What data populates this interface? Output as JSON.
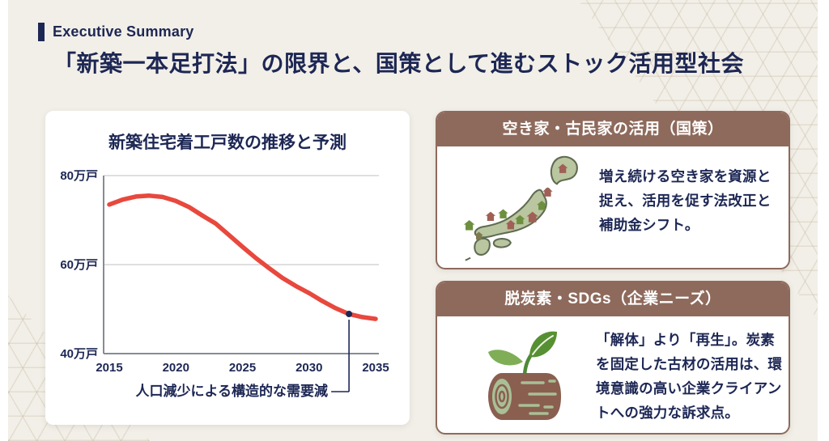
{
  "slide": {
    "eyebrow": "Executive Summary",
    "title": "「新築一本足打法」の限界と、国策として進むストック活用型社会"
  },
  "chart_data": {
    "type": "line",
    "title": "新築住宅着工戸数の推移と予測",
    "xlabel": "",
    "ylabel": "万戸",
    "x": [
      2015,
      2016,
      2017,
      2018,
      2019,
      2020,
      2021,
      2022,
      2023,
      2024,
      2025,
      2026,
      2027,
      2028,
      2029,
      2030,
      2031,
      2032,
      2033,
      2034,
      2035
    ],
    "values": [
      73.5,
      74.6,
      75.3,
      75.5,
      75.2,
      74.3,
      72.9,
      71.0,
      69.2,
      66.6,
      64.0,
      61.5,
      59.2,
      57.0,
      55.2,
      53.6,
      51.8,
      50.2,
      48.9,
      48.2,
      47.8
    ],
    "xlim": [
      2015,
      2035
    ],
    "ylim": [
      40,
      80
    ],
    "y_ticks": [
      {
        "value": 80,
        "label": "80万戸"
      },
      {
        "value": 60,
        "label": "60万戸"
      },
      {
        "value": 40,
        "label": "40万戸"
      }
    ],
    "x_ticks": [
      "2015",
      "2020",
      "2025",
      "2030",
      "2035"
    ],
    "grid": true,
    "legend": "none",
    "annotation": {
      "x": 2033,
      "label": "人口減少による構造的な需要減"
    }
  },
  "cards": [
    {
      "header": "空き家・古民家の活用（国策）",
      "icon": "japan-map-with-houses",
      "body": "増え続ける空き家を資源と捉え、活用を促す法改正と補助金シフト。"
    },
    {
      "header": "脱炭素・SDGs（企業ニーズ）",
      "icon": "log-with-sprout",
      "body": "「解体」より「再生」。炭素を固定した古材の活用は、環境意識の高い企業クライアントへの強力な訴求点。"
    }
  ],
  "colors": {
    "background": "#f2efe8",
    "navy": "#1d2754",
    "line_red": "#e8483d",
    "card_brown": "#8e6a5c",
    "grid_gray": "#cccccc",
    "axis_gray": "#878b94",
    "map_green": "#b9c6a0",
    "house_red": "#a06055",
    "house_green": "#6e8f3f",
    "log_brown": "#8a5f50",
    "log_face_green": "#a9bf96"
  }
}
